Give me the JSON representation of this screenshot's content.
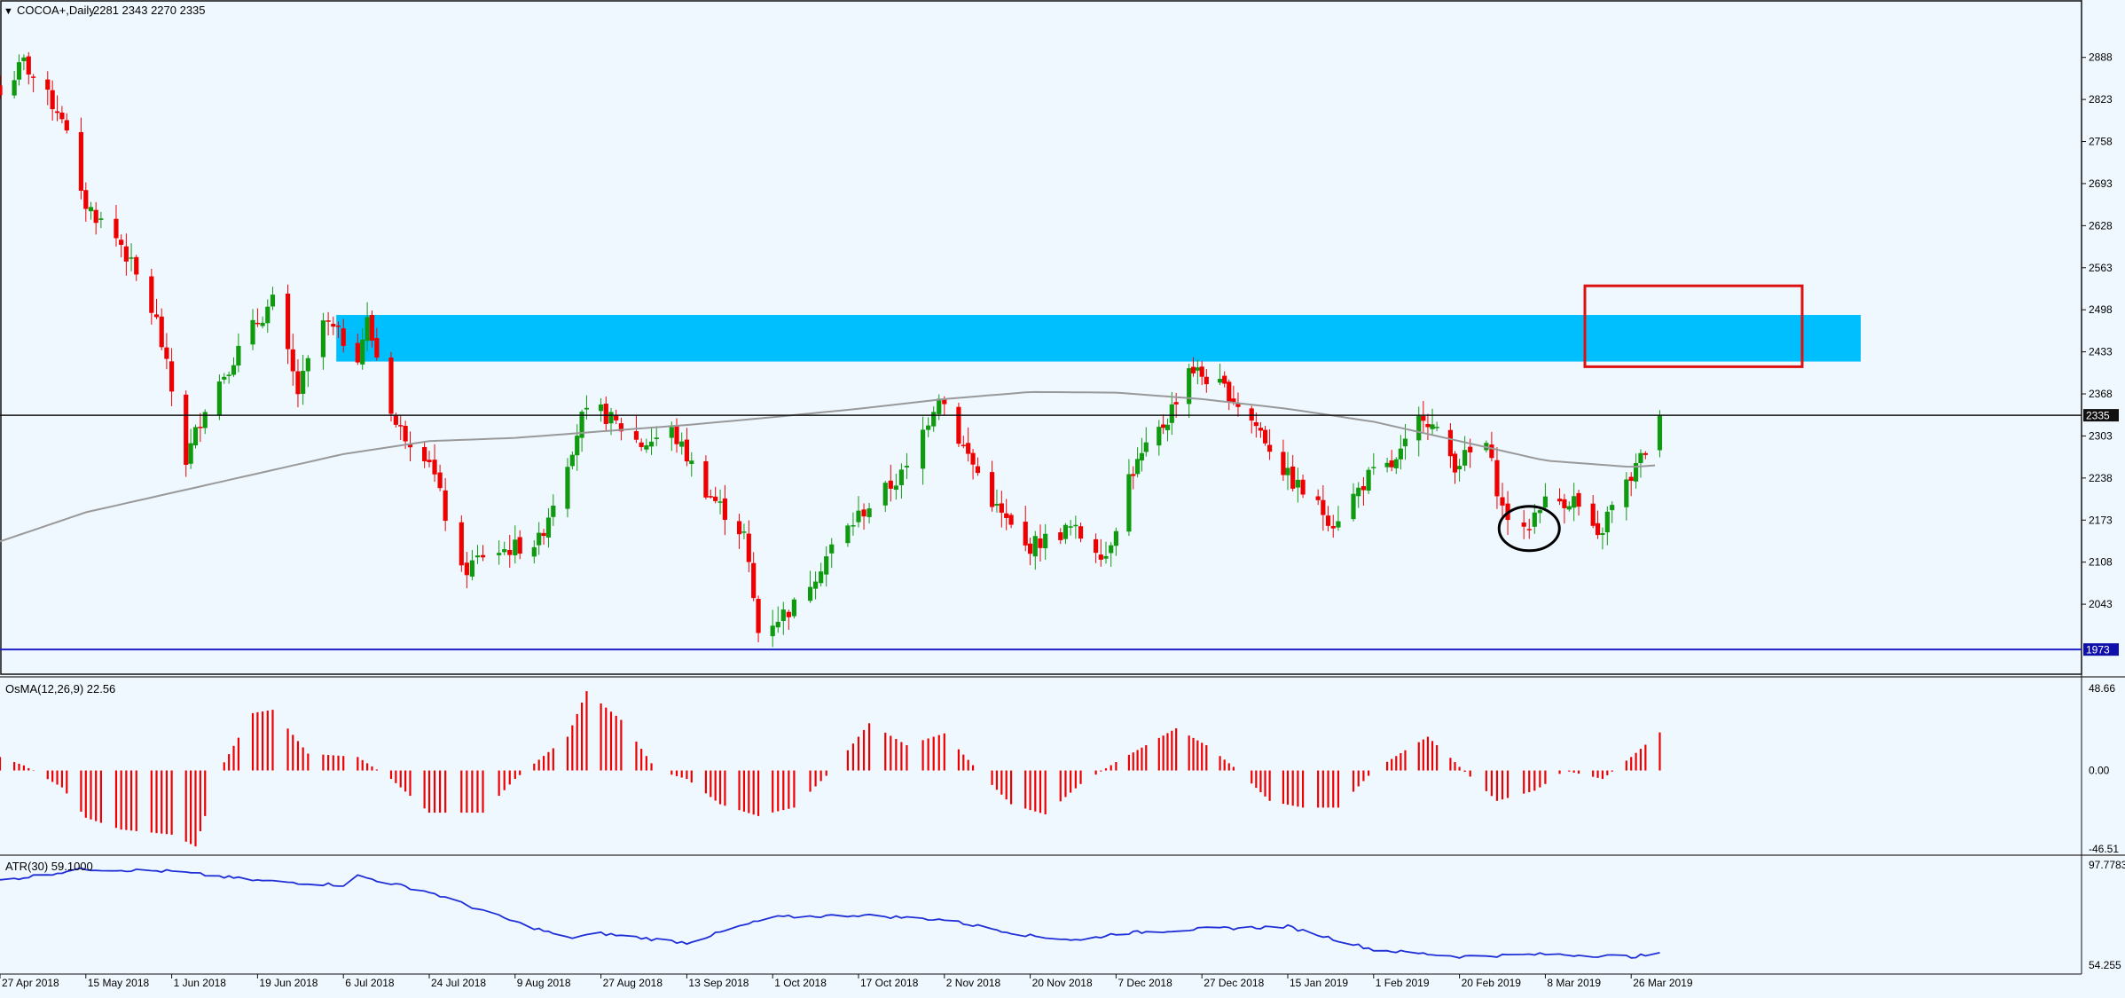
{
  "header": {
    "symbol_label": "COCOA+,Daily",
    "ohlc": "2281 2343 2270 2335",
    "osma_label": "OsMA(12,26,9) 22.56",
    "atr_label": "ATR(30) 59.1000"
  },
  "colors": {
    "background": "#f0f8ff",
    "bull": "#109a10",
    "bear": "#ee0000",
    "zone": "#00bfff",
    "box": "#dd1111",
    "sma": "#999999",
    "atr": "#1f2fd8",
    "support_line": "#2020c8",
    "price_tag_bg": "#111111",
    "support_tag_bg": "#1010aa"
  },
  "price_axis_ticks": [
    "2888",
    "2823",
    "2758",
    "2693",
    "2628",
    "2563",
    "2498",
    "2433",
    "2368",
    "2303",
    "2238",
    "2173",
    "2108",
    "2043"
  ],
  "current_price_tag": "2335",
  "support_price_tag": "1973",
  "osma_axis_ticks": [
    "48.66",
    "0.00",
    "-46.51"
  ],
  "atr_axis_ticks": [
    "97.7783",
    "54.255"
  ],
  "date_labels": [
    "27 Apr 2018",
    "15 May 2018",
    "1 Jun 2018",
    "19 Jun 2018",
    "6 Jul 2018",
    "24 Jul 2018",
    "9 Aug 2018",
    "27 Aug 2018",
    "13 Sep 2018",
    "1 Oct 2018",
    "17 Oct 2018",
    "2 Nov 2018",
    "20 Nov 2018",
    "7 Dec 2018",
    "27 Dec 2018",
    "15 Jan 2019",
    "1 Feb 2019",
    "20 Feb 2019",
    "8 Mar 2019",
    "26 Mar 2019"
  ],
  "chart_data": {
    "type": "candlestick",
    "symbol": "COCOA+",
    "timeframe": "Daily",
    "last": {
      "open": 2281,
      "high": 2343,
      "low": 2270,
      "close": 2335
    },
    "price_range": [
      1965,
      2915
    ],
    "close_path_knots": [
      {
        "date": "27 Apr 2018",
        "price": 2830
      },
      {
        "date": "2 May 2018",
        "price": 2880
      },
      {
        "date": "7 May 2018",
        "price": 2825
      },
      {
        "date": "10 May 2018",
        "price": 2800
      },
      {
        "date": "14 May 2018",
        "price": 2670
      },
      {
        "date": "22 May 2018",
        "price": 2600
      },
      {
        "date": "29 May 2018",
        "price": 2480
      },
      {
        "date": "4 Jun 2018",
        "price": 2265
      },
      {
        "date": "8 Jun 2018",
        "price": 2350
      },
      {
        "date": "12 Jun 2018",
        "price": 2400
      },
      {
        "date": "18 Jun 2018",
        "price": 2470
      },
      {
        "date": "22 Jun 2018",
        "price": 2510
      },
      {
        "date": "27 Jun 2018",
        "price": 2370
      },
      {
        "date": "2 Jul 2018",
        "price": 2480
      },
      {
        "date": "9 Jul 2018",
        "price": 2430
      },
      {
        "date": "11 Jul 2018",
        "price": 2480
      },
      {
        "date": "17 Jul 2018",
        "price": 2320
      },
      {
        "date": "24 Jul 2018",
        "price": 2270
      },
      {
        "date": "30 Jul 2018",
        "price": 2090
      },
      {
        "date": "3 Aug 2018",
        "price": 2120
      },
      {
        "date": "14 Aug 2018",
        "price": 2140
      },
      {
        "date": "23 Aug 2018",
        "price": 2330
      },
      {
        "date": "27 Aug 2018",
        "price": 2340
      },
      {
        "date": "4 Sep 2018",
        "price": 2290
      },
      {
        "date": "10 Sep 2018",
        "price": 2310
      },
      {
        "date": "17 Sep 2018",
        "price": 2220
      },
      {
        "date": "25 Sep 2018",
        "price": 2150
      },
      {
        "date": "28 Sep 2018",
        "price": 2000
      },
      {
        "date": "5 Oct 2018",
        "price": 2040
      },
      {
        "date": "12 Oct 2018",
        "price": 2130
      },
      {
        "date": "17 Oct 2018",
        "price": 2180
      },
      {
        "date": "26 Oct 2018",
        "price": 2250
      },
      {
        "date": "1 Nov 2018",
        "price": 2370
      },
      {
        "date": "5 Nov 2018",
        "price": 2300
      },
      {
        "date": "13 Nov 2018",
        "price": 2190
      },
      {
        "date": "19 Nov 2018",
        "price": 2130
      },
      {
        "date": "28 Nov 2018",
        "price": 2160
      },
      {
        "date": "5 Dec 2018",
        "price": 2120
      },
      {
        "date": "10 Dec 2018",
        "price": 2240
      },
      {
        "date": "19 Dec 2018",
        "price": 2330
      },
      {
        "date": "24 Dec 2018",
        "price": 2410
      },
      {
        "date": "2 Jan 2019",
        "price": 2370
      },
      {
        "date": "9 Jan 2019",
        "price": 2310
      },
      {
        "date": "15 Jan 2019",
        "price": 2240
      },
      {
        "date": "24 Jan 2019",
        "price": 2170
      },
      {
        "date": "31 Jan 2019",
        "price": 2240
      },
      {
        "date": "6 Feb 2019",
        "price": 2260
      },
      {
        "date": "12 Feb 2019",
        "price": 2340
      },
      {
        "date": "19 Feb 2019",
        "price": 2260
      },
      {
        "date": "25 Feb 2019",
        "price": 2290
      },
      {
        "date": "28 Feb 2019",
        "price": 2190
      },
      {
        "date": "4 Mar 2019",
        "price": 2150
      },
      {
        "date": "7 Mar 2019",
        "price": 2200
      },
      {
        "date": "14 Mar 2019",
        "price": 2205
      },
      {
        "date": "19 Mar 2019",
        "price": 2140
      },
      {
        "date": "21 Mar 2019",
        "price": 2180
      },
      {
        "date": "26 Mar 2019",
        "price": 2240
      },
      {
        "date": "29 Mar 2019",
        "price": 2281
      },
      {
        "date": "1 Apr 2019",
        "price": 2335
      }
    ],
    "moving_average_knots": [
      {
        "date": "27 Apr 2018",
        "price": 2140
      },
      {
        "date": "15 May 2018",
        "price": 2185
      },
      {
        "date": "1 Jun 2018",
        "price": 2215
      },
      {
        "date": "19 Jun 2018",
        "price": 2245
      },
      {
        "date": "6 Jul 2018",
        "price": 2275
      },
      {
        "date": "24 Jul 2018",
        "price": 2295
      },
      {
        "date": "9 Aug 2018",
        "price": 2300
      },
      {
        "date": "27 Aug 2018",
        "price": 2310
      },
      {
        "date": "13 Sep 2018",
        "price": 2320
      },
      {
        "date": "1 Oct 2018",
        "price": 2332
      },
      {
        "date": "17 Oct 2018",
        "price": 2345
      },
      {
        "date": "2 Nov 2018",
        "price": 2360
      },
      {
        "date": "20 Nov 2018",
        "price": 2371
      },
      {
        "date": "7 Dec 2018",
        "price": 2370
      },
      {
        "date": "27 Dec 2018",
        "price": 2360
      },
      {
        "date": "15 Jan 2019",
        "price": 2345
      },
      {
        "date": "1 Feb 2019",
        "price": 2325
      },
      {
        "date": "20 Feb 2019",
        "price": 2295
      },
      {
        "date": "8 Mar 2019",
        "price": 2265
      },
      {
        "date": "26 Mar 2019",
        "price": 2255
      },
      {
        "date": "1 Apr 2019",
        "price": 2258
      }
    ],
    "resistance_zone": {
      "low": 2418,
      "high": 2490
    },
    "target_box": {
      "low": 2410,
      "high": 2535
    },
    "support_level": 1973,
    "current_price_line": 2335,
    "highlighted_candles": {
      "date": "5 Mar 2019",
      "price": 2160
    },
    "osma": {
      "ylim": [
        -46.51,
        48.66
      ],
      "knots": [
        {
          "date": "27 Apr 2018",
          "value": 8
        },
        {
          "date": "2 May 2018",
          "value": 3
        },
        {
          "date": "10 May 2018",
          "value": -10
        },
        {
          "date": "15 May 2018",
          "value": -28
        },
        {
          "date": "22 May 2018",
          "value": -35
        },
        {
          "date": "1 Jun 2018",
          "value": -38
        },
        {
          "date": "6 Jun 2018",
          "value": -45
        },
        {
          "date": "11 Jun 2018",
          "value": 0
        },
        {
          "date": "18 Jun 2018",
          "value": 34
        },
        {
          "date": "22 Jun 2018",
          "value": 36
        },
        {
          "date": "29 Jun 2018",
          "value": 10
        },
        {
          "date": "9 Jul 2018",
          "value": 8
        },
        {
          "date": "16 Jul 2018",
          "value": -5
        },
        {
          "date": "24 Jul 2018",
          "value": -25
        },
        {
          "date": "3 Aug 2018",
          "value": -25
        },
        {
          "date": "9 Aug 2018",
          "value": -5
        },
        {
          "date": "20 Aug 2018",
          "value": 20
        },
        {
          "date": "24 Aug 2018",
          "value": 47
        },
        {
          "date": "31 Aug 2018",
          "value": 30
        },
        {
          "date": "7 Sep 2018",
          "value": 0
        },
        {
          "date": "13 Sep 2018",
          "value": -5
        },
        {
          "date": "20 Sep 2018",
          "value": -20
        },
        {
          "date": "28 Sep 2018",
          "value": -27
        },
        {
          "date": "5 Oct 2018",
          "value": -22
        },
        {
          "date": "12 Oct 2018",
          "value": 0
        },
        {
          "date": "19 Oct 2018",
          "value": 28
        },
        {
          "date": "26 Oct 2018",
          "value": 15
        },
        {
          "date": "2 Nov 2018",
          "value": 22
        },
        {
          "date": "9 Nov 2018",
          "value": 0
        },
        {
          "date": "16 Nov 2018",
          "value": -20
        },
        {
          "date": "23 Nov 2018",
          "value": -26
        },
        {
          "date": "30 Nov 2018",
          "value": -8
        },
        {
          "date": "7 Dec 2018",
          "value": 5
        },
        {
          "date": "14 Dec 2018",
          "value": 15
        },
        {
          "date": "21 Dec 2018",
          "value": 25
        },
        {
          "date": "28 Dec 2018",
          "value": 15
        },
        {
          "date": "4 Jan 2019",
          "value": 0
        },
        {
          "date": "11 Jan 2019",
          "value": -18
        },
        {
          "date": "18 Jan 2019",
          "value": -22
        },
        {
          "date": "25 Jan 2019",
          "value": -22
        },
        {
          "date": "1 Feb 2019",
          "value": 0
        },
        {
          "date": "8 Feb 2019",
          "value": 12
        },
        {
          "date": "13 Feb 2019",
          "value": 20
        },
        {
          "date": "19 Feb 2019",
          "value": 5
        },
        {
          "date": "27 Feb 2019",
          "value": -18
        },
        {
          "date": "6 Mar 2019",
          "value": -12
        },
        {
          "date": "12 Mar 2019",
          "value": 0
        },
        {
          "date": "20 Mar 2019",
          "value": -5
        },
        {
          "date": "26 Mar 2019",
          "value": 8
        },
        {
          "date": "1 Apr 2019",
          "value": 22.56
        }
      ]
    },
    "atr": {
      "period": 30,
      "ylim": [
        54.255,
        97.7783
      ],
      "knots": [
        {
          "date": "27 Apr 2018",
          "value": 91
        },
        {
          "date": "15 May 2018",
          "value": 96
        },
        {
          "date": "1 Jun 2018",
          "value": 95
        },
        {
          "date": "19 Jun 2018",
          "value": 91
        },
        {
          "date": "6 Jul 2018",
          "value": 89
        },
        {
          "date": "9 Jul 2018",
          "value": 93
        },
        {
          "date": "24 Jul 2018",
          "value": 86
        },
        {
          "date": "9 Aug 2018",
          "value": 73
        },
        {
          "date": "20 Aug 2018",
          "value": 66
        },
        {
          "date": "27 Aug 2018",
          "value": 68
        },
        {
          "date": "13 Sep 2018",
          "value": 64
        },
        {
          "date": "24 Sep 2018",
          "value": 71
        },
        {
          "date": "1 Oct 2018",
          "value": 75
        },
        {
          "date": "17 Oct 2018",
          "value": 76
        },
        {
          "date": "2 Nov 2018",
          "value": 74
        },
        {
          "date": "20 Nov 2018",
          "value": 67
        },
        {
          "date": "30 Nov 2018",
          "value": 65
        },
        {
          "date": "7 Dec 2018",
          "value": 68
        },
        {
          "date": "27 Dec 2018",
          "value": 70
        },
        {
          "date": "15 Jan 2019",
          "value": 71
        },
        {
          "date": "1 Feb 2019",
          "value": 61
        },
        {
          "date": "20 Feb 2019",
          "value": 58
        },
        {
          "date": "8 Mar 2019",
          "value": 59
        },
        {
          "date": "26 Mar 2019",
          "value": 58
        },
        {
          "date": "1 Apr 2019",
          "value": 59.1
        }
      ]
    }
  }
}
